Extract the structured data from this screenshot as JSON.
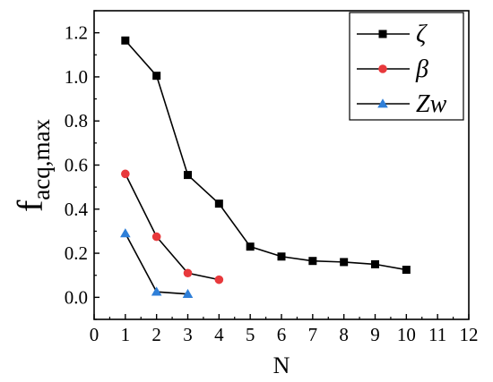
{
  "chart_data": {
    "type": "line",
    "xlabel": "N",
    "ylabel_main": "f",
    "ylabel_sub": "acq,max",
    "xlim": [
      0,
      12
    ],
    "ylim": [
      -0.1,
      1.3
    ],
    "xticks": [
      "0",
      "1",
      "2",
      "3",
      "4",
      "5",
      "6",
      "7",
      "8",
      "9",
      "10",
      "11",
      "12"
    ],
    "yticks": [
      "0.0",
      "0.2",
      "0.4",
      "0.6",
      "0.8",
      "1.0",
      "1.2"
    ],
    "grid": false,
    "legend_position": "top-right",
    "series": [
      {
        "name": "ζ",
        "marker": "square",
        "color": "#000000",
        "x": [
          1,
          2,
          3,
          4,
          5,
          6,
          7,
          8,
          9,
          10
        ],
        "y": [
          1.165,
          1.005,
          0.555,
          0.425,
          0.23,
          0.185,
          0.165,
          0.16,
          0.15,
          0.125
        ]
      },
      {
        "name": "β",
        "marker": "circle",
        "color": "#e8393c",
        "x": [
          1,
          2,
          3,
          4
        ],
        "y": [
          0.56,
          0.275,
          0.11,
          0.08
        ]
      },
      {
        "name": "Zw",
        "marker": "triangle",
        "color": "#2f7fd8",
        "x": [
          1,
          2,
          3
        ],
        "y": [
          0.29,
          0.025,
          0.015
        ]
      }
    ]
  }
}
